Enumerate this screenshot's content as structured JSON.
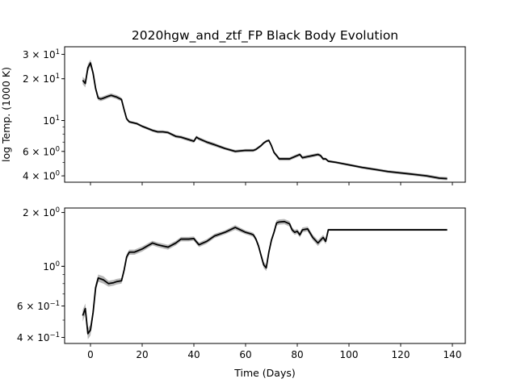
{
  "chart_data": [
    {
      "type": "line",
      "title": "2020hgw_and_ztf_FP Black Body Evolution",
      "xlabel": "",
      "ylabel": "log Temp. (1000 K)",
      "yscale": "log",
      "xlim": [
        -10,
        145
      ],
      "ylim": [
        3.6,
        34
      ],
      "grid": false,
      "yticks": [
        {
          "value": 30,
          "label": "3 × 10",
          "exp": "1"
        },
        {
          "value": 20,
          "label": "2 × 10",
          "exp": "1"
        },
        {
          "value": 10,
          "label": "10",
          "exp": "1"
        },
        {
          "value": 6,
          "label": "6 × 10",
          "exp": "0"
        },
        {
          "value": 4,
          "label": "4 × 10",
          "exp": "0"
        }
      ],
      "series": [
        {
          "color": "#000000",
          "band_color": "#a0a0a0",
          "x": [
            -3,
            -2,
            -1,
            0,
            1,
            2,
            3,
            4,
            5,
            7,
            8,
            10,
            11,
            12,
            13,
            14,
            15,
            16,
            18,
            20,
            22,
            24,
            26,
            28,
            30,
            33,
            35,
            38,
            40,
            41,
            42,
            45,
            48,
            52,
            56,
            60,
            62,
            63,
            64,
            65,
            66,
            67,
            68,
            69,
            70,
            71,
            72,
            73,
            75,
            77,
            78,
            79,
            80,
            81,
            82,
            84,
            86,
            88,
            89,
            90,
            91,
            92,
            95,
            100,
            105,
            110,
            115,
            120,
            125,
            130,
            135,
            138
          ],
          "y": [
            19.5,
            18.5,
            24,
            26,
            22,
            17,
            14.5,
            14.3,
            14.5,
            15,
            15.2,
            14.8,
            14.5,
            14.2,
            12,
            10.3,
            9.8,
            9.7,
            9.5,
            9.1,
            8.8,
            8.5,
            8.3,
            8.3,
            8.2,
            7.7,
            7.6,
            7.3,
            7.1,
            7.6,
            7.4,
            7.0,
            6.7,
            6.3,
            6.0,
            6.1,
            6.1,
            6.1,
            6.2,
            6.4,
            6.6,
            6.9,
            7.1,
            7.2,
            6.6,
            5.9,
            5.6,
            5.3,
            5.3,
            5.3,
            5.4,
            5.5,
            5.6,
            5.7,
            5.4,
            5.5,
            5.6,
            5.7,
            5.6,
            5.3,
            5.3,
            5.1,
            5.0,
            4.8,
            4.6,
            4.45,
            4.3,
            4.2,
            4.1,
            4.0,
            3.85,
            3.82
          ],
          "band": [
            1.2,
            1.2,
            1.5,
            1.5,
            1.2,
            0.8,
            0.5,
            0.5,
            0.5,
            0.5,
            0.5,
            0.5,
            0.5,
            0.4,
            0.3,
            0.3,
            0.2,
            0.2,
            0.2,
            0.2,
            0.2,
            0.2,
            0.2,
            0.2,
            0.2,
            0.2,
            0.2,
            0.2,
            0.2,
            0.2,
            0.2,
            0.2,
            0.2,
            0.15,
            0.15,
            0.15,
            0.15,
            0.15,
            0.15,
            0.15,
            0.15,
            0.15,
            0.15,
            0.15,
            0.15,
            0.15,
            0.15,
            0.15,
            0.15,
            0.15,
            0.15,
            0.15,
            0.15,
            0.15,
            0.15,
            0.15,
            0.15,
            0.15,
            0.15,
            0.15,
            0.1,
            0.1,
            0.1,
            0.1,
            0.1,
            0.1,
            0.1,
            0.1,
            0.1,
            0.1,
            0.1,
            0.1
          ]
        }
      ]
    },
    {
      "type": "line",
      "xlabel": "Time (Days)",
      "ylabel": "",
      "yscale": "log",
      "xlim": [
        -10,
        145
      ],
      "ylim": [
        0.37,
        2.12
      ],
      "grid": false,
      "yticks": [
        {
          "value": 2,
          "label": "2 × 10",
          "exp": "0"
        },
        {
          "value": 1,
          "label": "10",
          "exp": "0"
        },
        {
          "value": 0.6,
          "label": "6 × 10",
          "exp": "−1"
        },
        {
          "value": 0.4,
          "label": "4 × 10",
          "exp": "−1"
        }
      ],
      "xticks": [
        0,
        20,
        40,
        60,
        80,
        100,
        120,
        140
      ],
      "series": [
        {
          "color": "#000000",
          "band_color": "#a0a0a0",
          "x": [
            -3,
            -2,
            -1,
            0,
            1,
            2,
            3,
            5,
            7,
            9,
            10,
            12,
            13,
            14,
            15,
            17,
            20,
            22,
            24,
            26,
            28,
            30,
            33,
            35,
            38,
            40,
            41,
            42,
            45,
            48,
            52,
            56,
            60,
            62,
            63,
            64,
            65,
            66,
            67,
            68,
            69,
            70,
            71,
            72,
            73,
            75,
            77,
            78,
            79,
            80,
            81,
            82,
            84,
            86,
            88,
            89,
            90,
            91,
            92,
            94,
            100,
            110,
            120,
            130,
            138
          ],
          "y": [
            0.53,
            0.58,
            0.42,
            0.44,
            0.55,
            0.76,
            0.86,
            0.84,
            0.8,
            0.81,
            0.82,
            0.83,
            0.95,
            1.13,
            1.2,
            1.2,
            1.25,
            1.3,
            1.35,
            1.32,
            1.3,
            1.28,
            1.35,
            1.42,
            1.42,
            1.43,
            1.37,
            1.32,
            1.38,
            1.48,
            1.55,
            1.65,
            1.55,
            1.52,
            1.5,
            1.42,
            1.3,
            1.15,
            1.02,
            0.98,
            1.2,
            1.4,
            1.55,
            1.75,
            1.77,
            1.78,
            1.73,
            1.6,
            1.55,
            1.57,
            1.5,
            1.6,
            1.62,
            1.45,
            1.35,
            1.4,
            1.45,
            1.38,
            1.6,
            1.6,
            1.6,
            1.6,
            1.6,
            1.6,
            1.6
          ],
          "band": [
            0.04,
            0.04,
            0.03,
            0.03,
            0.03,
            0.04,
            0.04,
            0.04,
            0.03,
            0.03,
            0.03,
            0.03,
            0.03,
            0.04,
            0.04,
            0.04,
            0.04,
            0.04,
            0.04,
            0.04,
            0.04,
            0.04,
            0.04,
            0.04,
            0.04,
            0.04,
            0.04,
            0.04,
            0.04,
            0.04,
            0.04,
            0.05,
            0.04,
            0.04,
            0.04,
            0.04,
            0.04,
            0.04,
            0.04,
            0.04,
            0.04,
            0.04,
            0.05,
            0.06,
            0.06,
            0.06,
            0.06,
            0.05,
            0.05,
            0.05,
            0.05,
            0.05,
            0.05,
            0.05,
            0.05,
            0.05,
            0.05,
            0.05,
            0.02,
            0.02,
            0.02,
            0.02,
            0.02,
            0.02,
            0.02
          ]
        }
      ]
    }
  ]
}
